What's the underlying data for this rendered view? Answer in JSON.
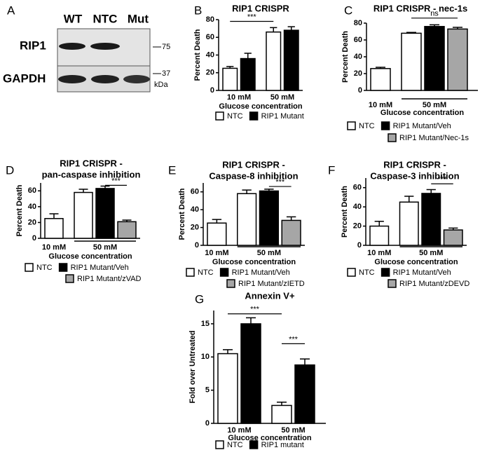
{
  "blot": {
    "panel": "A",
    "lanes": [
      "WT",
      "NTC",
      "Mut"
    ],
    "rows": [
      "RIP1",
      "GAPDH"
    ],
    "markers": [
      "75",
      "37"
    ],
    "unit": "kDa"
  },
  "chart_data": [
    {
      "panel": "B",
      "type": "bar",
      "title": [
        "RIP1 CRISPR"
      ],
      "ylabel": "Percent Death",
      "xlabel": "Glucose concentration",
      "categories": [
        "10 mM",
        "50 mM"
      ],
      "ylim": [
        0,
        80
      ],
      "yticks": [
        0,
        20,
        40,
        60,
        80
      ],
      "series": [
        {
          "name": "NTC",
          "color": "#ffffff",
          "values": [
            25,
            66
          ],
          "errors": [
            2,
            5
          ]
        },
        {
          "name": "RIP1 Mutant",
          "color": "#000000",
          "values": [
            36,
            68
          ],
          "errors": [
            6,
            4
          ]
        }
      ],
      "annotations": [
        {
          "text": "***"
        }
      ]
    },
    {
      "panel": "C",
      "type": "bar",
      "title": [
        "RIP1 CRISPR - nec-1s"
      ],
      "ylabel": "Percent Death",
      "xlabel": "Glucose concentration",
      "categories": [
        "10 mM",
        "50 mM"
      ],
      "ylim": [
        0,
        80
      ],
      "yticks": [
        0,
        20,
        40,
        60,
        80
      ],
      "series": [
        {
          "name": "NTC",
          "color": "#ffffff",
          "values": [
            26,
            68
          ],
          "errors": [
            1.5,
            1
          ]
        },
        {
          "name": "RIP1 Mutant/Veh",
          "color": "#000000",
          "values": [
            null,
            76
          ],
          "errors": [
            null,
            2
          ]
        },
        {
          "name": "RIP1 Mutant/Nec-1s",
          "color": "#a6a6a6",
          "values": [
            null,
            73
          ],
          "errors": [
            null,
            2
          ]
        }
      ],
      "annotations": [
        {
          "text": "ns"
        }
      ]
    },
    {
      "panel": "D",
      "type": "bar",
      "title": [
        "RIP1 CRISPR -",
        "pan-caspase inhibition"
      ],
      "ylabel": "Percent Death",
      "xlabel": "Glucose concentration",
      "categories": [
        "10 mM",
        "50 mM"
      ],
      "ylim": [
        0,
        70
      ],
      "yticks": [
        0,
        20,
        40,
        60
      ],
      "series": [
        {
          "name": "NTC",
          "color": "#ffffff",
          "values": [
            25,
            58
          ],
          "errors": [
            6,
            4
          ]
        },
        {
          "name": "RIP1 Mutant/Veh",
          "color": "#000000",
          "values": [
            null,
            63
          ],
          "errors": [
            null,
            3
          ]
        },
        {
          "name": "RIP1 Mutant/zVAD",
          "color": "#a6a6a6",
          "values": [
            null,
            21
          ],
          "errors": [
            null,
            2
          ]
        }
      ],
      "annotations": [
        {
          "text": "***"
        }
      ]
    },
    {
      "panel": "E",
      "type": "bar",
      "title": [
        "RIP1 CRISPR -",
        "Caspase-8 inhibition"
      ],
      "ylabel": "Percent Death",
      "xlabel": "Glucose concentration",
      "categories": [
        "10 mM",
        "50 mM"
      ],
      "ylim": [
        0,
        70
      ],
      "yticks": [
        0,
        20,
        40,
        60
      ],
      "series": [
        {
          "name": "NTC",
          "color": "#ffffff",
          "values": [
            25,
            58
          ],
          "errors": [
            4,
            4
          ]
        },
        {
          "name": "RIP1 Mutant/Veh",
          "color": "#000000",
          "values": [
            null,
            61
          ],
          "errors": [
            null,
            2
          ]
        },
        {
          "name": "RIP1 Mutant/zIETD",
          "color": "#a6a6a6",
          "values": [
            null,
            28
          ],
          "errors": [
            null,
            4
          ]
        }
      ],
      "annotations": [
        {
          "text": "***"
        }
      ]
    },
    {
      "panel": "F",
      "type": "bar",
      "title": [
        "RIP1 CRISPR -",
        "Caspase-3 inhibition"
      ],
      "ylabel": "Percent Death",
      "xlabel": "Glucose concentration",
      "categories": [
        "10 mM",
        "50 mM"
      ],
      "ylim": [
        0,
        70
      ],
      "yticks": [
        0,
        20,
        40,
        60
      ],
      "series": [
        {
          "name": "NTC",
          "color": "#ffffff",
          "values": [
            20,
            45
          ],
          "errors": [
            5,
            6
          ]
        },
        {
          "name": "RIP1 Mutant/Veh",
          "color": "#000000",
          "values": [
            null,
            54
          ],
          "errors": [
            null,
            4
          ]
        },
        {
          "name": "RIP1 Mutant/zDEVD",
          "color": "#a6a6a6",
          "values": [
            null,
            16
          ],
          "errors": [
            null,
            2
          ]
        }
      ],
      "annotations": [
        {
          "text": "***"
        }
      ]
    },
    {
      "panel": "G",
      "type": "bar",
      "title": [
        "Annexin V+"
      ],
      "ylabel": "Fold over Untreated",
      "xlabel": "Glucose concentration",
      "categories": [
        "10 mM",
        "50 mM"
      ],
      "ylim": [
        0,
        17
      ],
      "yticks": [
        0,
        5,
        10,
        15
      ],
      "series": [
        {
          "name": "NTC",
          "color": "#ffffff",
          "values": [
            10.5,
            2.7
          ],
          "errors": [
            0.6,
            0.5
          ]
        },
        {
          "name": "RIP1 mutant",
          "color": "#000000",
          "values": [
            15,
            8.8
          ],
          "errors": [
            0.9,
            0.9
          ]
        }
      ],
      "annotations": [
        {
          "text": "***"
        },
        {
          "text": "***"
        }
      ]
    }
  ]
}
